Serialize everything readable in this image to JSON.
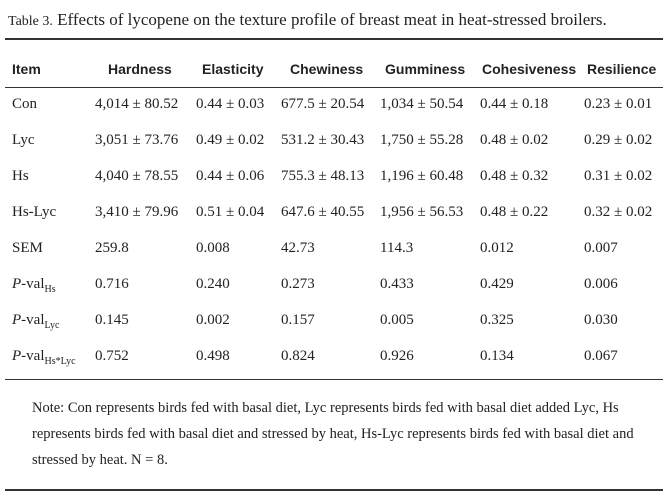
{
  "caption": {
    "label": "Table 3.",
    "title": "Effects of lycopene on the texture profile of breast meat in heat-stressed broilers."
  },
  "table": {
    "header": [
      "Item",
      "Hardness",
      "Elasticity",
      "Chewiness",
      "Gumminess",
      "Cohesiveness",
      "Resilience"
    ],
    "rows": [
      [
        "Con",
        "4,014 ± 80.52",
        "0.44 ± 0.03",
        "677.5 ± 20.54",
        "1,034 ± 50.54",
        "0.44 ± 0.18",
        "0.23 ± 0.01"
      ],
      [
        "Lyc",
        "3,051 ± 73.76",
        "0.49 ± 0.02",
        "531.2 ± 30.43",
        "1,750 ± 55.28",
        "0.48 ± 0.02",
        "0.29 ± 0.02"
      ],
      [
        "Hs",
        "4,040 ± 78.55",
        "0.44 ± 0.06",
        "755.3 ± 48.13",
        "1,196 ± 60.48",
        "0.48 ± 0.32",
        "0.31 ± 0.02"
      ],
      [
        "Hs-Lyc",
        "3,410 ± 79.96",
        "0.51 ± 0.04",
        "647.6 ± 40.55",
        "1,956 ± 56.53",
        "0.48 ± 0.22",
        "0.32 ± 0.02"
      ],
      [
        "SEM",
        "259.8",
        "0.008",
        "42.73",
        "114.3",
        "0.012",
        "0.007"
      ],
      [
        {
          "italic": "P",
          "text": "-val",
          "sub": "Hs"
        },
        "0.716",
        "0.240",
        "0.273",
        "0.433",
        "0.429",
        "0.006"
      ],
      [
        {
          "italic": "P",
          "text": "-val",
          "sub": "Lyc"
        },
        "0.145",
        "0.002",
        "0.157",
        "0.005",
        "0.325",
        "0.030"
      ],
      [
        {
          "italic": "P",
          "text": "-val",
          "sub": "Hs*Lyc"
        },
        "0.752",
        "0.498",
        "0.824",
        "0.926",
        "0.134",
        "0.067"
      ]
    ]
  },
  "note": "Note: Con represents birds fed with basal diet, Lyc represents birds fed with basal diet added Lyc, Hs represents birds fed with basal diet and stressed by heat, Hs-Lyc represents birds fed with basal diet and stressed by heat. N = 8."
}
